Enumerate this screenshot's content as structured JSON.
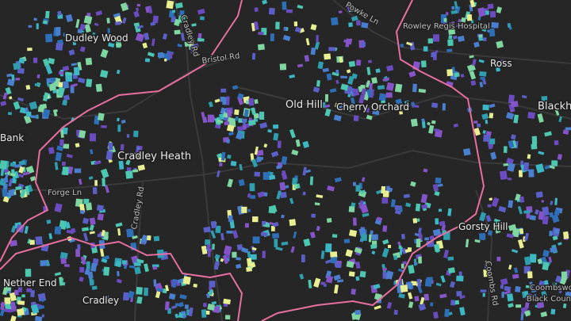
{
  "places": [
    "Dudley Wood",
    "Rowley Regis Hospital",
    "Ross",
    "Old Hill",
    "Cherry Orchard",
    "Blackh",
    "Bank",
    "Cradley Heath",
    "Gorsty Hill",
    "Nether End",
    "Cradley",
    "Coombswood",
    "Black Coun"
  ],
  "roads": [
    "Cradley Rd",
    "Bristol Rd",
    "Powke Ln",
    "Forge Ln",
    "Cradley Rd",
    "Coombs Rd"
  ]
}
